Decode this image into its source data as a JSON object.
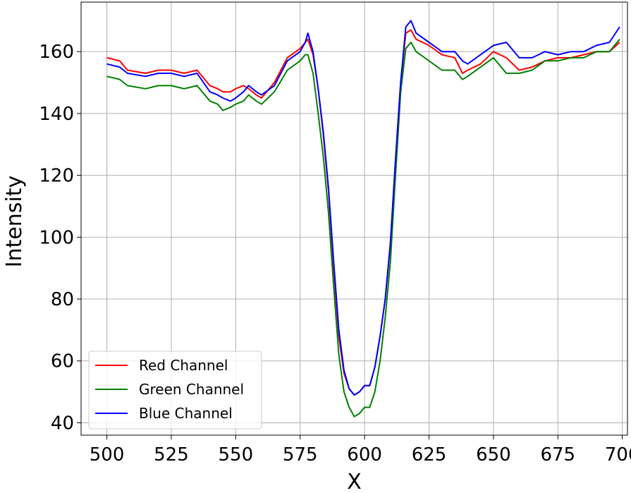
{
  "chart_data": {
    "type": "line",
    "title": "",
    "xlabel": "X",
    "ylabel": "Intensity",
    "xlim": [
      490,
      702
    ],
    "ylim": [
      36,
      176
    ],
    "xticks": [
      500,
      525,
      550,
      575,
      600,
      625,
      650,
      675,
      700
    ],
    "yticks": [
      40,
      60,
      80,
      100,
      120,
      140,
      160
    ],
    "grid": true,
    "legend_position": "lower-left",
    "series": [
      {
        "name": "Red Channel",
        "color": "#ff0000",
        "x": [
          500,
          505,
          508,
          515,
          520,
          525,
          530,
          535,
          540,
          543,
          545,
          548,
          550,
          553,
          555,
          558,
          560,
          565,
          570,
          575,
          577,
          578,
          580,
          582,
          584,
          586,
          588,
          590,
          592,
          594,
          596,
          598,
          600,
          602,
          604,
          606,
          608,
          610,
          612,
          614,
          616,
          618,
          620,
          625,
          630,
          635,
          638,
          640,
          645,
          650,
          655,
          660,
          665,
          670,
          675,
          680,
          685,
          690,
          695,
          699
        ],
        "y": [
          158,
          157,
          154,
          153,
          154,
          154,
          153,
          154,
          149,
          148,
          147,
          147,
          148,
          149,
          148,
          146,
          145,
          150,
          158,
          161,
          163,
          164,
          159,
          148,
          133,
          115,
          90,
          68,
          56,
          51,
          49,
          50,
          52,
          52,
          58,
          68,
          80,
          98,
          125,
          150,
          166,
          167,
          164,
          162,
          159,
          158,
          153,
          154,
          156,
          160,
          158,
          154,
          155,
          157,
          158,
          158,
          159,
          160,
          160,
          163
        ]
      },
      {
        "name": "Green Channel",
        "color": "#008000",
        "x": [
          500,
          505,
          508,
          515,
          520,
          525,
          530,
          535,
          540,
          543,
          545,
          548,
          550,
          553,
          555,
          558,
          560,
          565,
          570,
          575,
          577,
          578,
          580,
          582,
          584,
          586,
          588,
          590,
          592,
          594,
          596,
          598,
          600,
          602,
          604,
          606,
          608,
          610,
          612,
          614,
          616,
          618,
          620,
          625,
          630,
          635,
          638,
          640,
          645,
          650,
          655,
          660,
          665,
          670,
          675,
          680,
          685,
          690,
          695,
          699
        ],
        "y": [
          152,
          151,
          149,
          148,
          149,
          149,
          148,
          149,
          144,
          143,
          141,
          142,
          143,
          144,
          146,
          144,
          143,
          147,
          154,
          157,
          159,
          159,
          153,
          140,
          126,
          108,
          84,
          62,
          50,
          45,
          42,
          43,
          45,
          45,
          50,
          60,
          74,
          92,
          120,
          147,
          161,
          163,
          160,
          157,
          154,
          154,
          151,
          152,
          155,
          158,
          153,
          153,
          154,
          157,
          157,
          158,
          158,
          160,
          160,
          164
        ]
      },
      {
        "name": "Blue Channel",
        "color": "#0000ff",
        "x": [
          500,
          505,
          508,
          515,
          520,
          525,
          530,
          535,
          540,
          543,
          545,
          548,
          550,
          553,
          555,
          558,
          560,
          565,
          570,
          575,
          577,
          578,
          580,
          582,
          584,
          586,
          588,
          590,
          592,
          594,
          596,
          598,
          600,
          602,
          604,
          606,
          608,
          610,
          612,
          614,
          616,
          618,
          620,
          625,
          630,
          635,
          638,
          640,
          645,
          650,
          655,
          660,
          665,
          670,
          675,
          680,
          685,
          690,
          695,
          699
        ],
        "y": [
          156,
          155,
          153,
          152,
          153,
          153,
          152,
          153,
          147,
          146,
          145,
          144,
          145,
          147,
          149,
          147,
          146,
          149,
          157,
          160,
          163,
          166,
          160,
          148,
          134,
          116,
          92,
          70,
          57,
          51,
          49,
          50,
          52,
          52,
          58,
          68,
          80,
          98,
          125,
          150,
          168,
          170,
          166,
          163,
          160,
          160,
          157,
          156,
          159,
          162,
          163,
          158,
          158,
          160,
          159,
          160,
          160,
          162,
          163,
          168
        ]
      }
    ]
  }
}
